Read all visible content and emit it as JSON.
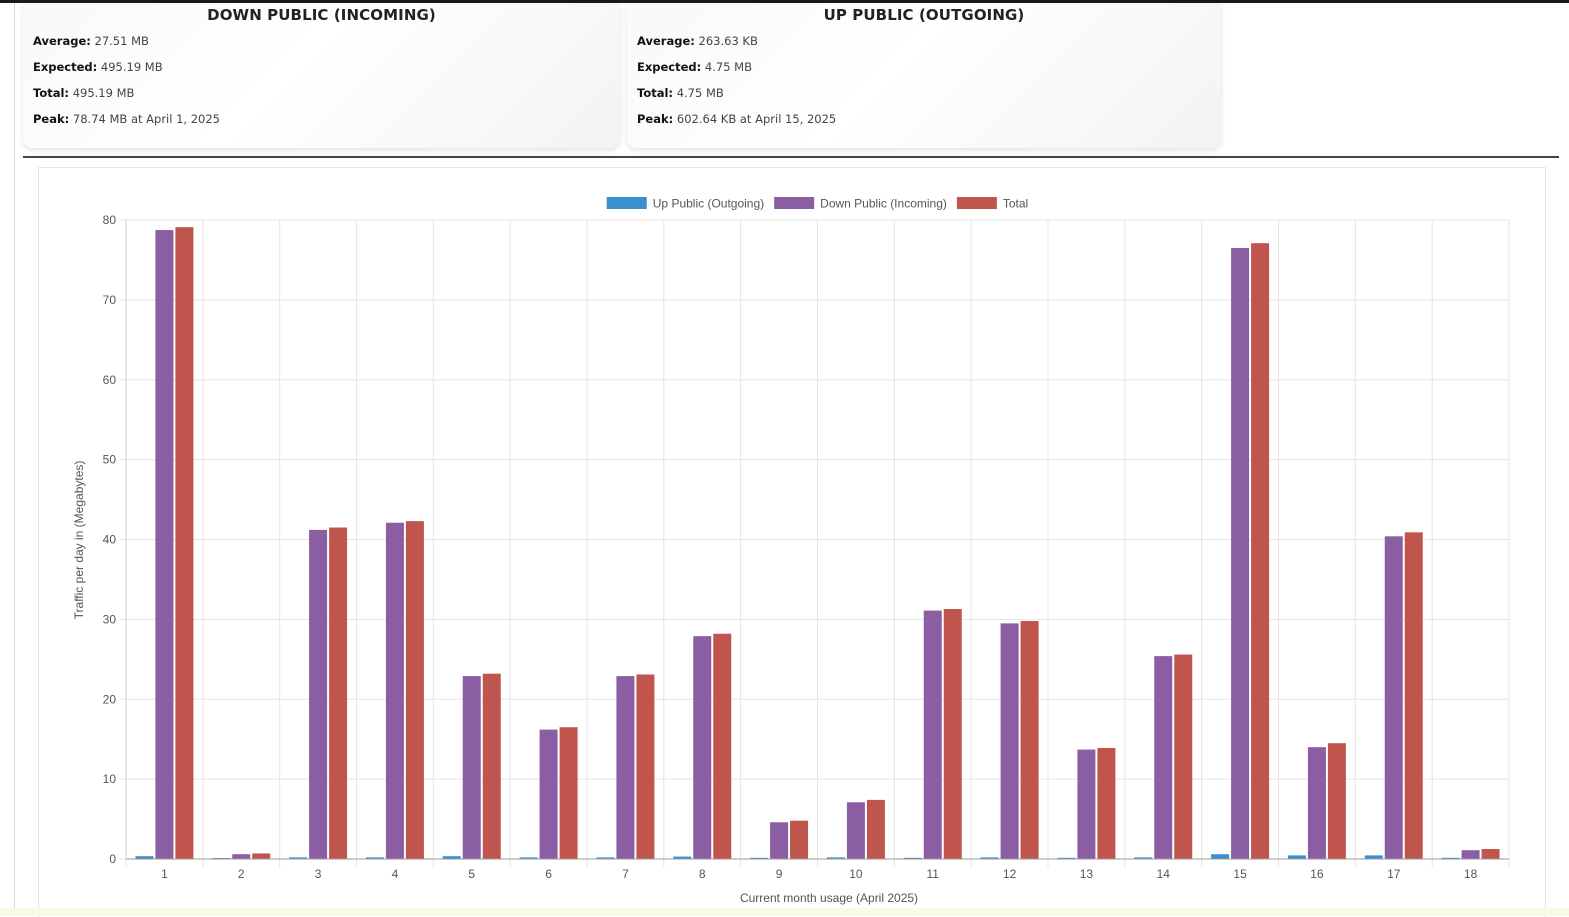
{
  "stats": {
    "down": {
      "title": "DOWN PUBLIC (INCOMING)",
      "average_label": "Average:",
      "average": "27.51 MB",
      "expected_label": "Expected:",
      "expected": "495.19 MB",
      "total_label": "Total:",
      "total": "495.19 MB",
      "peak_label": "Peak:",
      "peak": "78.74 MB at April 1, 2025"
    },
    "up": {
      "title": "UP PUBLIC (OUTGOING)",
      "average_label": "Average:",
      "average": "263.63 KB",
      "expected_label": "Expected:",
      "expected": "4.75 MB",
      "total_label": "Total:",
      "total": "4.75 MB",
      "peak_label": "Peak:",
      "peak": "602.64 KB at April 15, 2025"
    }
  },
  "chart_data": {
    "type": "bar",
    "xlabel": "Current month usage (April 2025)",
    "ylabel": "Traffic per day in (Megabytes)",
    "ylim": [
      0,
      80
    ],
    "yticks": [
      0,
      10,
      20,
      30,
      40,
      50,
      60,
      70,
      80
    ],
    "grid": true,
    "legend_position": "top-center",
    "categories": [
      "1",
      "2",
      "3",
      "4",
      "5",
      "6",
      "7",
      "8",
      "9",
      "10",
      "11",
      "12",
      "13",
      "14",
      "15",
      "16",
      "17",
      "18"
    ],
    "series": [
      {
        "name": "Up Public (Outgoing)",
        "color": "#3a8fd0",
        "values": [
          0.35,
          0.1,
          0.2,
          0.2,
          0.35,
          0.2,
          0.2,
          0.3,
          0.15,
          0.2,
          0.15,
          0.2,
          0.15,
          0.2,
          0.6,
          0.45,
          0.45,
          0.15
        ]
      },
      {
        "name": "Down Public (Incoming)",
        "color": "#8b5ea4",
        "values": [
          78.74,
          0.6,
          41.2,
          42.1,
          22.9,
          16.2,
          22.9,
          27.9,
          4.6,
          7.1,
          31.1,
          29.5,
          13.7,
          25.4,
          76.5,
          14.0,
          40.4,
          1.1
        ]
      },
      {
        "name": "Total",
        "color": "#c0554e",
        "values": [
          79.1,
          0.7,
          41.5,
          42.3,
          23.2,
          16.5,
          23.1,
          28.2,
          4.8,
          7.4,
          31.3,
          29.8,
          13.9,
          25.6,
          77.1,
          14.5,
          40.9,
          1.25
        ]
      }
    ]
  }
}
